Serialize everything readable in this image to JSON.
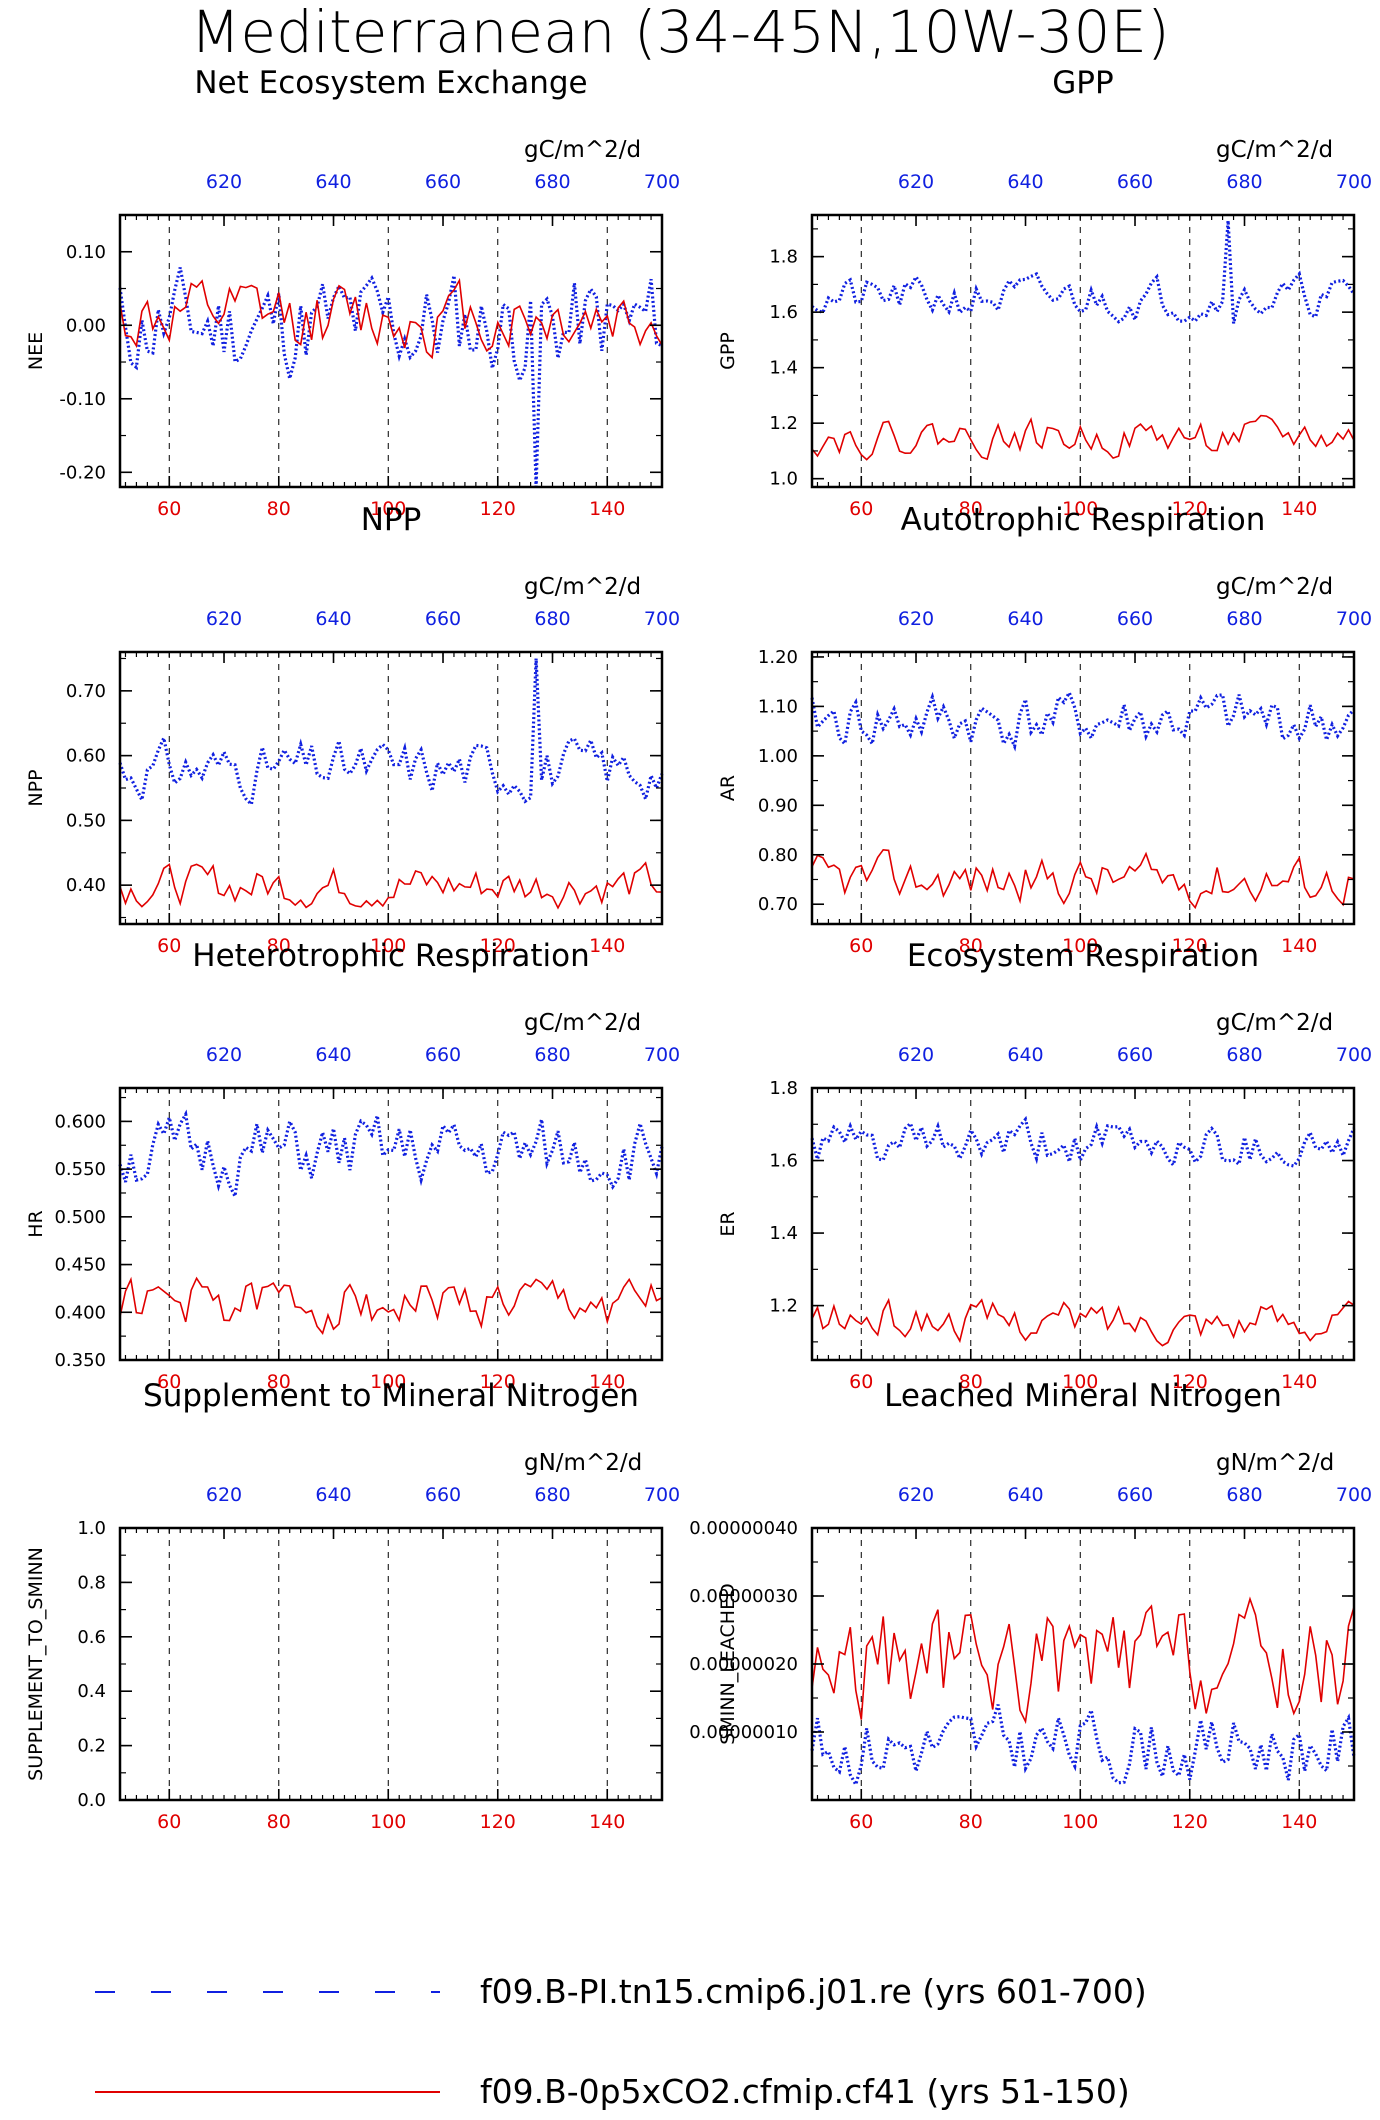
{
  "suptitle": "Mediterranean (34-45N,10W-30E)",
  "colors": {
    "series_a": "#1020e0",
    "series_b": "#e00000",
    "axis": "#000000"
  },
  "legend": [
    {
      "label": "f09.B-PI.tn15.cmip6.j01.re (yrs 601-700)",
      "color": "#1020e0",
      "style": "dashed"
    },
    {
      "label": "f09.B-0p5xCO2.cfmip.cf41 (yrs 51-150)",
      "color": "#e00000",
      "style": "solid"
    }
  ],
  "chart_data": [
    {
      "type": "line",
      "title": "Net Ecosystem Exchange",
      "units": "gC/m^2/d",
      "ylabel": "NEE",
      "ylim": [
        -0.22,
        0.15
      ],
      "yticks": [
        0.1,
        0.0,
        -0.1,
        -0.2
      ],
      "ytick_labels": [
        "0.10",
        "0.00",
        "-0.10",
        "-0.20"
      ],
      "x_bottom": {
        "range": [
          51,
          150
        ],
        "ticks": [
          60,
          80,
          100,
          120,
          140
        ]
      },
      "x_top": {
        "range": [
          601,
          700
        ],
        "ticks": [
          620,
          640,
          660,
          680,
          700
        ]
      },
      "grid": "dashed vertical at bottom ticks",
      "series": [
        {
          "name": "f09.B-PI.tn15.cmip6.j01.re (yrs 601-700)",
          "color": "#1020e0",
          "style": "dotted",
          "amp": 0.07,
          "baseline": 0.0,
          "seed": 11,
          "spike": {
            "x": 127,
            "y": -0.22
          }
        },
        {
          "name": "f09.B-0p5xCO2.cfmip.cf41 (yrs 51-150)",
          "color": "#e00000",
          "style": "solid",
          "amp": 0.045,
          "baseline": 0.01,
          "seed": 12
        }
      ]
    },
    {
      "type": "line",
      "title": "GPP",
      "units": "gC/m^2/d",
      "ylabel": "GPP",
      "ylim": [
        0.97,
        1.95
      ],
      "yticks": [
        1.0,
        1.2,
        1.4,
        1.6,
        1.8
      ],
      "ytick_labels": [
        "1.0",
        "1.2",
        "1.4",
        "1.6",
        "1.8"
      ],
      "x_bottom": {
        "range": [
          51,
          150
        ],
        "ticks": [
          60,
          80,
          100,
          120,
          140
        ]
      },
      "x_top": {
        "range": [
          601,
          700
        ],
        "ticks": [
          620,
          640,
          660,
          680,
          700
        ]
      },
      "grid": "dashed vertical at bottom ticks",
      "series": [
        {
          "name": "f09.B-PI.tn15.cmip6.j01.re (yrs 601-700)",
          "color": "#1020e0",
          "style": "dotted",
          "amp": 0.07,
          "baseline": 1.65,
          "seed": 21,
          "spike": {
            "x": 127,
            "y": 1.93
          }
        },
        {
          "name": "f09.B-0p5xCO2.cfmip.cf41 (yrs 51-150)",
          "color": "#e00000",
          "style": "solid",
          "amp": 0.06,
          "baseline": 1.15,
          "seed": 22
        }
      ]
    },
    {
      "type": "line",
      "title": "NPP",
      "units": "gC/m^2/d",
      "ylabel": "NPP",
      "ylim": [
        0.34,
        0.76
      ],
      "yticks": [
        0.4,
        0.5,
        0.6,
        0.7
      ],
      "ytick_labels": [
        "0.40",
        "0.50",
        "0.60",
        "0.70"
      ],
      "x_bottom": {
        "range": [
          51,
          150
        ],
        "ticks": [
          60,
          80,
          100,
          120,
          140
        ]
      },
      "x_top": {
        "range": [
          601,
          700
        ],
        "ticks": [
          620,
          640,
          660,
          680,
          700
        ]
      },
      "grid": "dashed vertical at bottom ticks",
      "series": [
        {
          "name": "f09.B-PI.tn15.cmip6.j01.re (yrs 601-700)",
          "color": "#1020e0",
          "style": "dotted",
          "amp": 0.04,
          "baseline": 0.58,
          "seed": 31,
          "spike": {
            "x": 127,
            "y": 0.75
          }
        },
        {
          "name": "f09.B-0p5xCO2.cfmip.cf41 (yrs 51-150)",
          "color": "#e00000",
          "style": "solid",
          "amp": 0.03,
          "baseline": 0.4,
          "seed": 32
        }
      ]
    },
    {
      "type": "line",
      "title": "Autotrophic Respiration",
      "units": "gC/m^2/d",
      "ylabel": "AR",
      "ylim": [
        0.66,
        1.21
      ],
      "yticks": [
        0.7,
        0.8,
        0.9,
        1.0,
        1.1,
        1.2
      ],
      "ytick_labels": [
        "0.70",
        "0.80",
        "0.90",
        "1.00",
        "1.10",
        "1.20"
      ],
      "x_bottom": {
        "range": [
          51,
          150
        ],
        "ticks": [
          60,
          80,
          100,
          120,
          140
        ]
      },
      "x_top": {
        "range": [
          601,
          700
        ],
        "ticks": [
          620,
          640,
          660,
          680,
          700
        ]
      },
      "grid": "dashed vertical at bottom ticks",
      "series": [
        {
          "name": "f09.B-PI.tn15.cmip6.j01.re (yrs 601-700)",
          "color": "#1020e0",
          "style": "dotted",
          "amp": 0.055,
          "baseline": 1.07,
          "seed": 41
        },
        {
          "name": "f09.B-0p5xCO2.cfmip.cf41 (yrs 51-150)",
          "color": "#e00000",
          "style": "solid",
          "amp": 0.045,
          "baseline": 0.75,
          "seed": 42
        }
      ]
    },
    {
      "type": "line",
      "title": "Heterotrophic Respiration",
      "units": "gC/m^2/d",
      "ylabel": "HR",
      "ylim": [
        0.35,
        0.635
      ],
      "yticks": [
        0.35,
        0.4,
        0.45,
        0.5,
        0.55,
        0.6
      ],
      "ytick_labels": [
        "0.350",
        "0.400",
        "0.450",
        "0.500",
        "0.550",
        "0.600"
      ],
      "x_bottom": {
        "range": [
          51,
          150
        ],
        "ticks": [
          60,
          80,
          100,
          120,
          140
        ]
      },
      "x_top": {
        "range": [
          601,
          700
        ],
        "ticks": [
          620,
          640,
          660,
          680,
          700
        ]
      },
      "grid": "dashed vertical at bottom ticks",
      "series": [
        {
          "name": "f09.B-PI.tn15.cmip6.j01.re (yrs 601-700)",
          "color": "#1020e0",
          "style": "dotted",
          "amp": 0.035,
          "baseline": 0.565,
          "seed": 51
        },
        {
          "name": "f09.B-0p5xCO2.cfmip.cf41 (yrs 51-150)",
          "color": "#e00000",
          "style": "solid",
          "amp": 0.025,
          "baseline": 0.41,
          "seed": 52
        }
      ]
    },
    {
      "type": "line",
      "title": "Ecosystem Respiration",
      "units": "gC/m^2/d",
      "ylabel": "ER",
      "ylim": [
        1.05,
        1.8
      ],
      "yticks": [
        1.2,
        1.4,
        1.6,
        1.8
      ],
      "ytick_labels": [
        "1.2",
        "1.4",
        "1.6",
        "1.8"
      ],
      "x_bottom": {
        "range": [
          51,
          150
        ],
        "ticks": [
          60,
          80,
          100,
          120,
          140
        ]
      },
      "x_top": {
        "range": [
          601,
          700
        ],
        "ticks": [
          620,
          640,
          660,
          680,
          700
        ]
      },
      "grid": "dashed vertical at bottom ticks",
      "series": [
        {
          "name": "f09.B-PI.tn15.cmip6.j01.re (yrs 601-700)",
          "color": "#1020e0",
          "style": "dotted",
          "amp": 0.06,
          "baseline": 1.64,
          "seed": 61
        },
        {
          "name": "f09.B-0p5xCO2.cfmip.cf41 (yrs 51-150)",
          "color": "#e00000",
          "style": "solid",
          "amp": 0.05,
          "baseline": 1.16,
          "seed": 62
        }
      ]
    },
    {
      "type": "line",
      "title": "Supplement to Mineral Nitrogen",
      "units": "gN/m^2/d",
      "ylabel": "SUPPLEMENT_TO_SMINN",
      "ylim": [
        0.0,
        1.0
      ],
      "yticks": [
        0.0,
        0.2,
        0.4,
        0.6,
        0.8,
        1.0
      ],
      "ytick_labels": [
        "0.0",
        "0.2",
        "0.4",
        "0.6",
        "0.8",
        "1.0"
      ],
      "x_bottom": {
        "range": [
          51,
          150
        ],
        "ticks": [
          60,
          80,
          100,
          120,
          140
        ]
      },
      "x_top": {
        "range": [
          601,
          700
        ],
        "ticks": [
          620,
          640,
          660,
          680,
          700
        ]
      },
      "grid": "dashed vertical at bottom ticks",
      "series": []
    },
    {
      "type": "line",
      "title": "Leached Mineral Nitrogen",
      "units": "gN/m^2/d",
      "ylabel": "SMINN_LEACHED",
      "ylim": [
        0.0,
        4e-07
      ],
      "yticks": [
        1e-07,
        2e-07,
        3e-07,
        4e-07
      ],
      "ytick_labels": [
        "0.00000010",
        "0.00000020",
        "0.00000030",
        "0.00000040"
      ],
      "x_bottom": {
        "range": [
          51,
          150
        ],
        "ticks": [
          60,
          80,
          100,
          120,
          140
        ]
      },
      "x_top": {
        "range": [
          601,
          700
        ],
        "ticks": [
          620,
          640,
          660,
          680,
          700
        ]
      },
      "grid": "dashed vertical at bottom ticks",
      "series": [
        {
          "name": "f09.B-PI.tn15.cmip6.j01.re (yrs 601-700)",
          "color": "#1020e0",
          "style": "dotted",
          "amp": 5e-08,
          "baseline": 8e-08,
          "seed": 81
        },
        {
          "name": "f09.B-0p5xCO2.cfmip.cf41 (yrs 51-150)",
          "color": "#e00000",
          "style": "solid",
          "amp": 8e-08,
          "baseline": 2e-07,
          "seed": 82
        }
      ]
    }
  ]
}
